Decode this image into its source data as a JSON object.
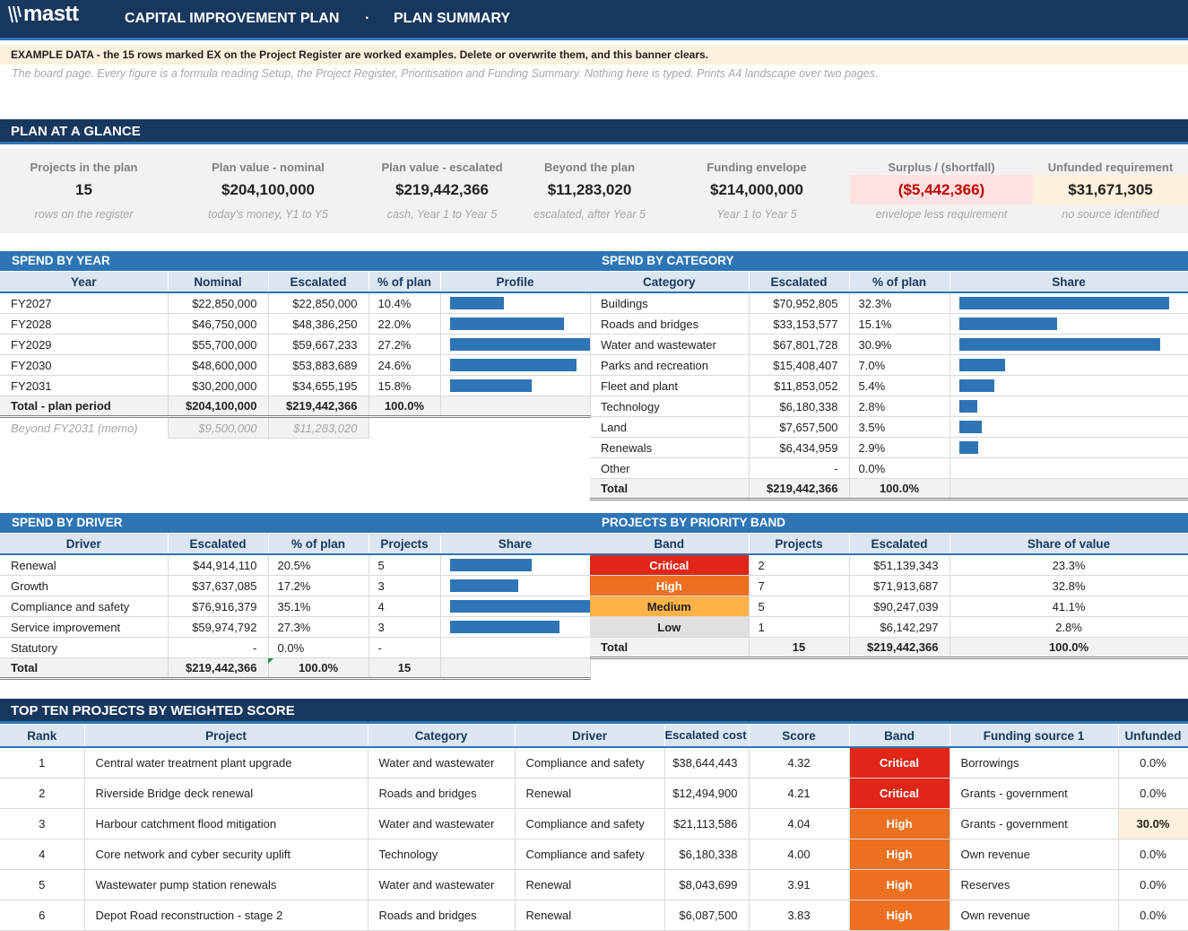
{
  "header": {
    "brand": "mastt",
    "title": "CAPITAL IMPROVEMENT PLAN",
    "separator": "·",
    "page": "PLAN SUMMARY"
  },
  "banner": "EXAMPLE DATA - the 15 rows marked EX on the Project Register are worked examples. Delete or overwrite them, and this banner clears.",
  "subnote": "The board page. Every figure is a formula reading Setup, the Project Register, Prioritisation and Funding Summary. Nothing here is typed. Prints A4 landscape over two pages.",
  "sections": {
    "glance": "PLAN AT A GLANCE",
    "year": "SPEND BY YEAR",
    "category": "SPEND BY CATEGORY",
    "driver": "SPEND BY DRIVER",
    "priority": "PROJECTS BY PRIORITY BAND",
    "top10": "TOP TEN PROJECTS BY WEIGHTED SCORE"
  },
  "kpis": [
    {
      "label": "Projects in the plan",
      "value": "15",
      "sub": "rows on the register"
    },
    {
      "label": "Plan value - nominal",
      "value": "$204,100,000",
      "sub": "today's money, Y1 to Y5"
    },
    {
      "label": "Plan value - escalated",
      "value": "$219,442,366",
      "sub": "cash, Year 1 to Year 5"
    },
    {
      "label": "Beyond the plan",
      "value": "$11,283,020",
      "sub": "escalated, after Year 5"
    },
    {
      "label": "Funding envelope",
      "value": "$214,000,000",
      "sub": "Year 1 to Year 5"
    },
    {
      "label": "Surplus / (shortfall)",
      "value": "($5,442,366)",
      "sub": "envelope less requirement"
    },
    {
      "label": "Unfunded requirement",
      "value": "$31,671,305",
      "sub": "no source identified"
    }
  ],
  "year_table": {
    "headers": [
      "Year",
      "Nominal",
      "Escalated",
      "% of plan",
      "Profile"
    ],
    "rows": [
      {
        "year": "FY2027",
        "nominal": "$22,850,000",
        "escalated": "$22,850,000",
        "pct": "10.4%",
        "share": 0.383
      },
      {
        "year": "FY2028",
        "nominal": "$46,750,000",
        "escalated": "$48,386,250",
        "pct": "22.0%",
        "share": 0.811
      },
      {
        "year": "FY2029",
        "nominal": "$55,700,000",
        "escalated": "$59,667,233",
        "pct": "27.2%",
        "share": 1.0
      },
      {
        "year": "FY2030",
        "nominal": "$48,600,000",
        "escalated": "$53,883,689",
        "pct": "24.6%",
        "share": 0.903
      },
      {
        "year": "FY2031",
        "nominal": "$30,200,000",
        "escalated": "$34,655,195",
        "pct": "15.8%",
        "share": 0.581
      }
    ],
    "total": {
      "label": "Total - plan period",
      "nominal": "$204,100,000",
      "escalated": "$219,442,366",
      "pct": "100.0%"
    },
    "memo": {
      "label": "Beyond FY2031  (memo)",
      "nominal": "$9,500,000",
      "escalated": "$11,283,020"
    }
  },
  "category_table": {
    "headers": [
      "Category",
      "Escalated",
      "% of plan",
      "Share"
    ],
    "rows": [
      {
        "name": "Buildings",
        "escalated": "$70,952,805",
        "pct": "32.3%",
        "share": 1.0
      },
      {
        "name": "Roads and bridges",
        "escalated": "$33,153,577",
        "pct": "15.1%",
        "share": 0.467
      },
      {
        "name": "Water and wastewater",
        "escalated": "$67,801,728",
        "pct": "30.9%",
        "share": 0.956
      },
      {
        "name": "Parks and recreation",
        "escalated": "$15,408,407",
        "pct": "7.0%",
        "share": 0.217
      },
      {
        "name": "Fleet and plant",
        "escalated": "$11,853,052",
        "pct": "5.4%",
        "share": 0.167
      },
      {
        "name": "Technology",
        "escalated": "$6,180,338",
        "pct": "2.8%",
        "share": 0.087
      },
      {
        "name": "Land",
        "escalated": "$7,657,500",
        "pct": "3.5%",
        "share": 0.108
      },
      {
        "name": "Renewals",
        "escalated": "$6,434,959",
        "pct": "2.9%",
        "share": 0.091
      },
      {
        "name": "Other",
        "escalated": "-",
        "pct": "0.0%",
        "share": 0
      }
    ],
    "total": {
      "label": "Total",
      "escalated": "$219,442,366",
      "pct": "100.0%"
    }
  },
  "driver_table": {
    "headers": [
      "Driver",
      "Escalated",
      "% of plan",
      "Projects",
      "Share"
    ],
    "rows": [
      {
        "name": "Renewal",
        "escalated": "$44,914,110",
        "pct": "20.5%",
        "projects": "5",
        "share": 0.584
      },
      {
        "name": "Growth",
        "escalated": "$37,637,085",
        "pct": "17.2%",
        "projects": "3",
        "share": 0.489
      },
      {
        "name": "Compliance and safety",
        "escalated": "$76,916,379",
        "pct": "35.1%",
        "projects": "4",
        "share": 1.0
      },
      {
        "name": "Service improvement",
        "escalated": "$59,974,792",
        "pct": "27.3%",
        "projects": "3",
        "share": 0.78
      },
      {
        "name": "Statutory",
        "escalated": "-",
        "pct": "0.0%",
        "projects": "-",
        "share": 0
      }
    ],
    "total": {
      "label": "Total",
      "escalated": "$219,442,366",
      "pct": "100.0%",
      "projects": "15"
    }
  },
  "priority_table": {
    "headers": [
      "Band",
      "Projects",
      "Escalated",
      "Share of value"
    ],
    "rows": [
      {
        "band": "Critical",
        "cls": "critical",
        "projects": "2",
        "escalated": "$51,139,343",
        "share": "23.3%"
      },
      {
        "band": "High",
        "cls": "high",
        "projects": "7",
        "escalated": "$71,913,687",
        "share": "32.8%"
      },
      {
        "band": "Medium",
        "cls": "medium",
        "projects": "5",
        "escalated": "$90,247,039",
        "share": "41.1%"
      },
      {
        "band": "Low",
        "cls": "low",
        "projects": "1",
        "escalated": "$6,142,297",
        "share": "2.8%"
      }
    ],
    "total": {
      "label": "Total",
      "projects": "15",
      "escalated": "$219,442,366",
      "share": "100.0%"
    }
  },
  "top10_table": {
    "headers": [
      "Rank",
      "Project",
      "Category",
      "Driver",
      "Escalated cost in plan",
      "Score",
      "Band",
      "Funding source 1",
      "Unfunded"
    ],
    "rows": [
      {
        "rank": "1",
        "project": "Central water treatment plant upgrade",
        "category": "Water and wastewater",
        "driver": "Compliance and safety",
        "cost": "$38,644,443",
        "score": "4.32",
        "band": "Critical",
        "cls": "critical",
        "source": "Borrowings",
        "unfunded": "0.0%",
        "warn": false
      },
      {
        "rank": "2",
        "project": "Riverside Bridge deck renewal",
        "category": "Roads and bridges",
        "driver": "Renewal",
        "cost": "$12,494,900",
        "score": "4.21",
        "band": "Critical",
        "cls": "critical",
        "source": "Grants - government",
        "unfunded": "0.0%",
        "warn": false
      },
      {
        "rank": "3",
        "project": "Harbour catchment flood mitigation",
        "category": "Water and wastewater",
        "driver": "Compliance and safety",
        "cost": "$21,113,586",
        "score": "4.04",
        "band": "High",
        "cls": "high",
        "source": "Grants - government",
        "unfunded": "30.0%",
        "warn": true
      },
      {
        "rank": "4",
        "project": "Core network and cyber security uplift",
        "category": "Technology",
        "driver": "Compliance and safety",
        "cost": "$6,180,338",
        "score": "4.00",
        "band": "High",
        "cls": "high",
        "source": "Own revenue",
        "unfunded": "0.0%",
        "warn": false
      },
      {
        "rank": "5",
        "project": "Wastewater pump station renewals",
        "category": "Water and wastewater",
        "driver": "Renewal",
        "cost": "$8,043,699",
        "score": "3.91",
        "band": "High",
        "cls": "high",
        "source": "Reserves",
        "unfunded": "0.0%",
        "warn": false
      },
      {
        "rank": "6",
        "project": "Depot Road reconstruction - stage 2",
        "category": "Roads and bridges",
        "driver": "Renewal",
        "cost": "$6,087,500",
        "score": "3.83",
        "band": "High",
        "cls": "high",
        "source": "Own revenue",
        "unfunded": "0.0%",
        "warn": false
      }
    ]
  },
  "colors": {
    "navy": "#17375e",
    "accent": "#2e75b6",
    "critical": "#e02618",
    "high": "#ed7020",
    "medium": "#ffb347",
    "low": "#e0e0e0"
  }
}
